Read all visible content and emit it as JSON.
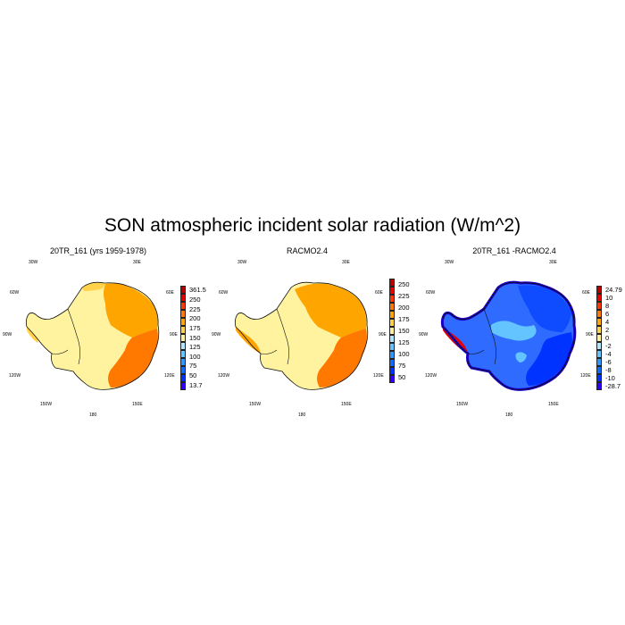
{
  "title": "SON atmospheric incident solar radiation (W/m^2)",
  "coord_labels": {
    "lon_30w": "30W",
    "lon_30e": "30E",
    "lon_60w": "60W",
    "lon_60e": "60E",
    "lon_90w": "90W",
    "lon_90e": "90E",
    "lon_120w": "120W",
    "lon_120e": "120E",
    "lon_150w": "150W",
    "lon_150e": "150E",
    "lon_180": "180"
  },
  "panels": [
    {
      "title": "20TR_161 (yrs 1959-1978)",
      "colorbar": {
        "colors": [
          "#3300ff",
          "#0033ff",
          "#0f6bff",
          "#2f98ff",
          "#64c4ff",
          "#b0e4ff",
          "#fff0a0",
          "#ffd24a",
          "#ffa500",
          "#ff7800",
          "#ff3a00",
          "#e60000",
          "#b80000"
        ],
        "labels": [
          "361.5",
          "250",
          "225",
          "200",
          "175",
          "150",
          "125",
          "100",
          "75",
          "50",
          "13.7"
        ]
      },
      "fill": {
        "main": "#fff3a0",
        "east": "#ffa500",
        "southeast": "#ff7800",
        "edge": "#ffd24a"
      }
    },
    {
      "title": "RACMO2.4",
      "colorbar": {
        "colors": [
          "#3300ff",
          "#0033ff",
          "#0f6bff",
          "#2f98ff",
          "#64c4ff",
          "#b0e4ff",
          "#fff0a0",
          "#ffd24a",
          "#ffa500",
          "#ff7800",
          "#ff3a00",
          "#e60000",
          "#b80000"
        ],
        "labels": [
          "250",
          "225",
          "200",
          "175",
          "150",
          "125",
          "100",
          "75",
          "50"
        ]
      },
      "fill": {
        "main": "#fff3a0",
        "east": "#ffa500",
        "southeast": "#ff7800",
        "edge": "#ffd24a"
      }
    },
    {
      "title": "20TR_161 -RACMO2.4",
      "colorbar": {
        "colors": [
          "#3300ff",
          "#0033ff",
          "#0f6bff",
          "#2f98ff",
          "#64c4ff",
          "#b0e4ff",
          "#fff0a0",
          "#ffd24a",
          "#ffa500",
          "#ff7800",
          "#ff3a00",
          "#e60000",
          "#b80000"
        ],
        "labels": [
          "24.79",
          "10",
          "8",
          "6",
          "4",
          "2",
          "0",
          "-2",
          "-4",
          "-6",
          "-8",
          "-10",
          "-28.7"
        ]
      },
      "fill": {
        "main": "#2f6bff",
        "east": "#0f4bff",
        "southeast": "#0033ff",
        "edge": "#1a1aff",
        "light": "#64c4ff"
      }
    }
  ]
}
